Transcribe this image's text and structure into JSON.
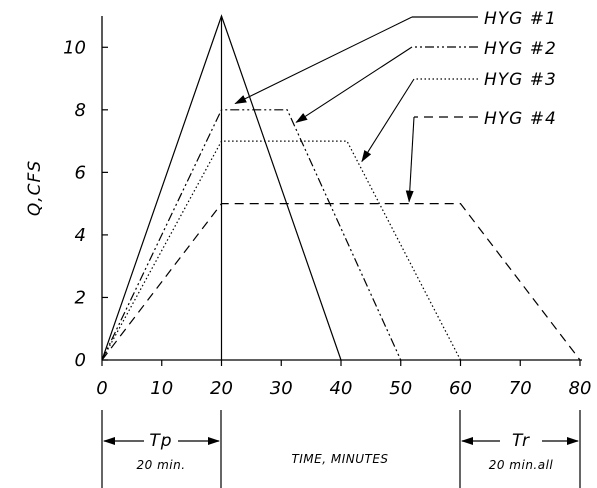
{
  "chart_data": {
    "type": "line",
    "ylabel": "Q,CFS",
    "xlim": [
      0,
      80
    ],
    "ylim": [
      0,
      11
    ],
    "xticks": [
      "0",
      "10",
      "20",
      "30",
      "40",
      "50",
      "60",
      "70",
      "80"
    ],
    "yticks": [
      "0",
      "2",
      "4",
      "6",
      "8",
      "10"
    ],
    "grid": false,
    "series": [
      {
        "name": "HYG #1",
        "style": "solid",
        "x": [
          0,
          20,
          40
        ],
        "y": [
          0,
          11,
          0
        ]
      },
      {
        "name": "HYG #2",
        "style": "dashdotdot",
        "x": [
          0,
          20,
          31,
          50
        ],
        "y": [
          0,
          8,
          8,
          0
        ]
      },
      {
        "name": "HYG #3",
        "style": "dotted",
        "x": [
          0,
          20,
          41,
          60
        ],
        "y": [
          0,
          7,
          7,
          0
        ]
      },
      {
        "name": "HYG #4",
        "style": "dashed",
        "x": [
          0,
          20,
          60,
          80
        ],
        "y": [
          0,
          5,
          5,
          0
        ]
      }
    ],
    "vertical_marker_x": 20,
    "annotations": {
      "tp_label": "Tp",
      "tp_value": "20 min.",
      "xlabel": "TIME, MINUTES",
      "tr_label": "Tr",
      "tr_value": "20 min.all"
    }
  }
}
